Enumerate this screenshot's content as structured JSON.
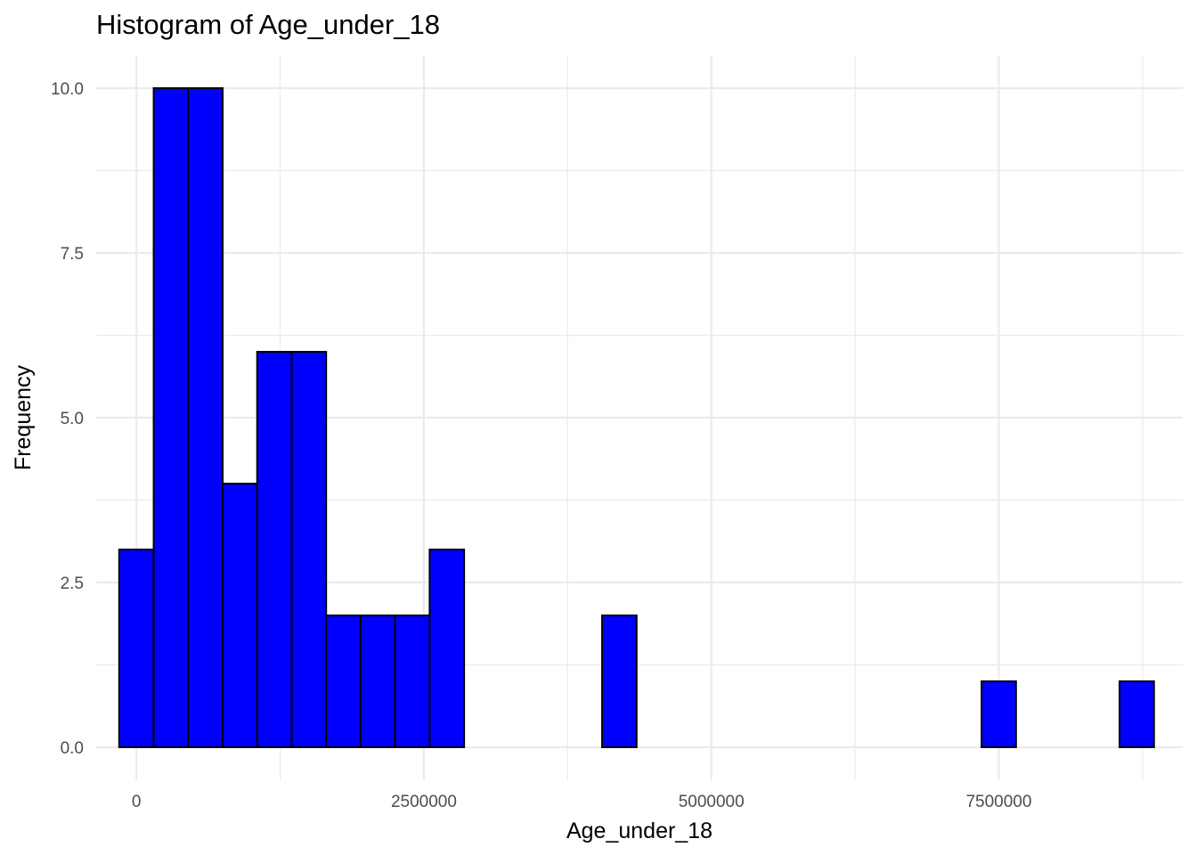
{
  "chart_data": {
    "type": "bar",
    "subtype": "histogram",
    "title": "Histogram of Age_under_18",
    "xlabel": "Age_under_18",
    "ylabel": "Frequency",
    "bin_width": 300000,
    "first_bin_center": 0,
    "bin_centers": [
      0,
      300000,
      600000,
      900000,
      1200000,
      1500000,
      1800000,
      2100000,
      2400000,
      2700000,
      3000000,
      3300000,
      3600000,
      3900000,
      4200000,
      4500000,
      4800000,
      5100000,
      5400000,
      5700000,
      6000000,
      6300000,
      6600000,
      6900000,
      7200000,
      7500000,
      7800000,
      8100000,
      8400000,
      8700000
    ],
    "values": [
      3,
      10,
      10,
      4,
      6,
      6,
      2,
      2,
      2,
      3,
      0,
      0,
      0,
      0,
      2,
      0,
      0,
      0,
      0,
      0,
      0,
      0,
      0,
      0,
      0,
      1,
      0,
      0,
      0,
      1
    ],
    "xlim": [
      -350000,
      9100000
    ],
    "ylim": [
      -0.5,
      10.5
    ],
    "x_ticks": [
      0,
      2500000,
      5000000,
      7500000
    ],
    "x_tick_labels": [
      "0",
      "2500000",
      "5000000",
      "7500000"
    ],
    "y_ticks": [
      0,
      2.5,
      5,
      7.5,
      10
    ],
    "y_tick_labels": [
      "0.0",
      "2.5",
      "5.0",
      "7.5",
      "10.0"
    ],
    "grid": true,
    "legend": "none",
    "colors": {
      "fill": "#0000FF",
      "outline": "#000000",
      "grid": "#EBEBEB",
      "tick_text": "#4D4D4D"
    }
  }
}
